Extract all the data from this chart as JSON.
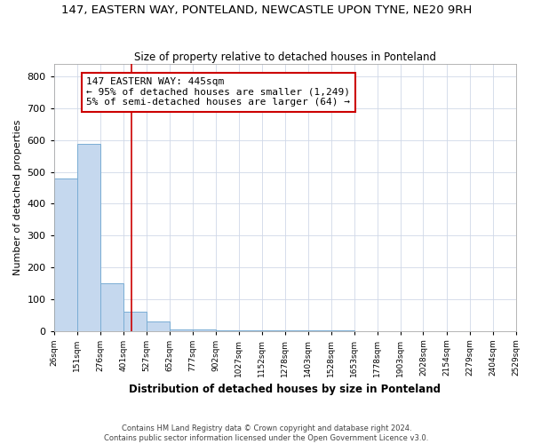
{
  "title": "147, EASTERN WAY, PONTELAND, NEWCASTLE UPON TYNE, NE20 9RH",
  "subtitle": "Size of property relative to detached houses in Ponteland",
  "xlabel": "Distribution of detached houses by size in Ponteland",
  "ylabel": "Number of detached properties",
  "bin_edges": [
    26,
    151,
    276,
    401,
    527,
    652,
    777,
    902,
    1027,
    1152,
    1278,
    1403,
    1528,
    1653,
    1778,
    1903,
    2028,
    2154,
    2279,
    2404,
    2529
  ],
  "bar_heights": [
    480,
    590,
    150,
    60,
    30,
    5,
    3,
    2,
    1,
    1,
    1,
    1,
    1,
    0,
    0,
    0,
    0,
    0,
    0,
    0
  ],
  "bar_color": "#c5d8ee",
  "bar_edgecolor": "#7aadd4",
  "vline_x": 445,
  "vline_color": "#cc0000",
  "annotation_lines": [
    "147 EASTERN WAY: 445sqm",
    "← 95% of detached houses are smaller (1,249)",
    "5% of semi-detached houses are larger (64) →"
  ],
  "annotation_box_edgecolor": "#cc0000",
  "ylim": [
    0,
    840
  ],
  "yticks": [
    0,
    100,
    200,
    300,
    400,
    500,
    600,
    700,
    800
  ],
  "footer": "Contains HM Land Registry data © Crown copyright and database right 2024.\nContains public sector information licensed under the Open Government Licence v3.0.",
  "background_color": "#ffffff",
  "grid_color": "#d0d8e8"
}
